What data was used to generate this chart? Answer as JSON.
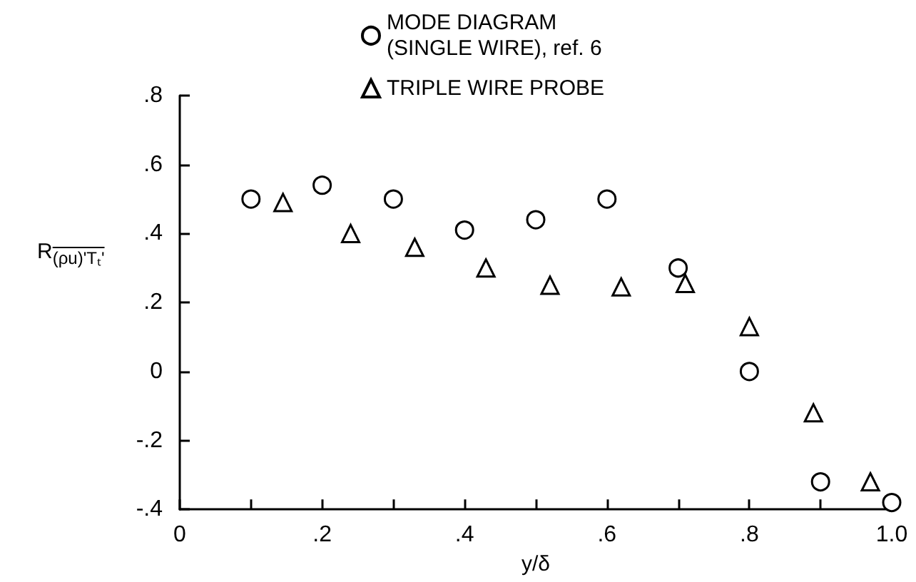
{
  "chart_data": {
    "type": "scatter",
    "xlabel": "y/δ",
    "ylabel": "R$_{(ρu)'Tₜ'}$",
    "series": [
      {
        "name": "MODE DIAGRAM\n(SINGLE WIRE), ref. 6",
        "color": "#000000",
        "marker": "circle",
        "x": [
          0.1,
          0.2,
          0.3,
          0.4,
          0.5,
          0.6,
          0.7,
          0.8,
          0.9,
          1.0
        ],
        "values": [
          0.5,
          0.54,
          0.5,
          0.41,
          0.44,
          0.5,
          0.3,
          0.0,
          -0.32,
          -0.38
        ]
      },
      {
        "name": "TRIPLE WIRE PROBE",
        "color": "#000000",
        "marker": "triangle",
        "x": [
          0.145,
          0.24,
          0.33,
          0.43,
          0.52,
          0.62,
          0.71,
          0.8,
          0.89,
          0.97
        ],
        "values": [
          0.49,
          0.4,
          0.36,
          0.3,
          0.25,
          0.245,
          0.255,
          0.13,
          -0.12,
          -0.32
        ]
      }
    ],
    "xlim": [
      0,
      1.0
    ],
    "xticks": [
      {
        "value": 0,
        "label": "0"
      },
      {
        "value": 0.1,
        "label": null
      },
      {
        "value": 0.2,
        "label": ".2"
      },
      {
        "value": 0.3,
        "label": null
      },
      {
        "value": 0.4,
        "label": ".4"
      },
      {
        "value": 0.5,
        "label": null
      },
      {
        "value": 0.6,
        "label": ".6"
      },
      {
        "value": 0.7,
        "label": null
      },
      {
        "value": 0.8,
        "label": ".8"
      },
      {
        "value": 0.9,
        "label": null
      },
      {
        "value": 1.0,
        "label": "1.0"
      }
    ],
    "ylim": [
      -0.4,
      0.8
    ],
    "yticks": [
      {
        "value": -0.4,
        "label": "-.4"
      },
      {
        "value": -0.2,
        "label": "-.2"
      },
      {
        "value": 0,
        "label": "0"
      },
      {
        "value": 0.2,
        "label": ".2"
      },
      {
        "value": 0.4,
        "label": ".4"
      },
      {
        "value": 0.6,
        "label": ".6"
      },
      {
        "value": 0.8,
        "label": ".8"
      }
    ],
    "grid": false,
    "legend": "top"
  }
}
